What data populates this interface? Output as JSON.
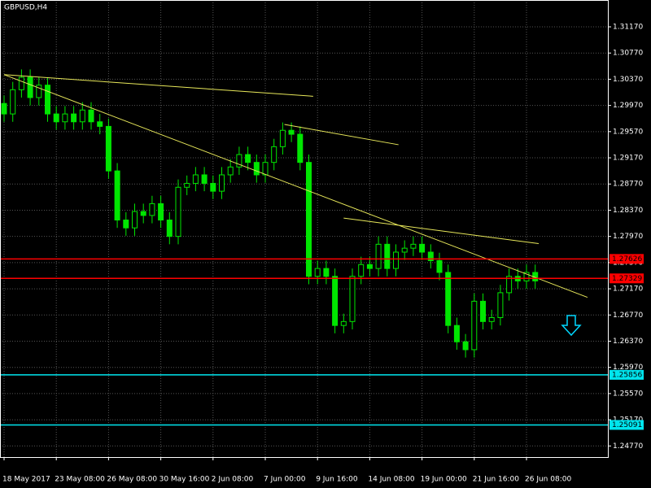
{
  "chart_data": {
    "type": "candlestick",
    "title": "GBPUSD,H4",
    "categories": [
      "18 May 2017",
      null,
      null,
      null,
      null,
      null,
      "23 May 08:00",
      null,
      null,
      null,
      null,
      null,
      "26 May 08:00",
      null,
      null,
      null,
      null,
      null,
      "30 May 16:00",
      null,
      null,
      null,
      null,
      null,
      "2 Jun 08:00",
      null,
      null,
      null,
      null,
      null,
      "7 Jun 00:00",
      null,
      null,
      null,
      null,
      null,
      "9 Jun 16:00",
      null,
      null,
      null,
      null,
      null,
      "14 Jun 08:00",
      null,
      null,
      null,
      null,
      null,
      "19 Jun 00:00",
      null,
      null,
      null,
      null,
      null,
      "21 Jun 16:00",
      null,
      null,
      null,
      null,
      null,
      "26 Jun 08:00",
      null
    ],
    "open": [
      1.3,
      1.2984,
      1.3021,
      1.304,
      1.3009,
      1.3028,
      1.2984,
      1.2972,
      1.2984,
      1.2972,
      1.299,
      1.2972,
      1.2965,
      1.2897,
      1.2822,
      1.281,
      1.2835,
      1.2829,
      1.2847,
      1.2822,
      1.2797,
      1.2872,
      1.2878,
      1.2891,
      1.2878,
      1.2866,
      1.2891,
      1.2903,
      1.2922,
      1.291,
      1.2891,
      1.291,
      1.2934,
      1.2959,
      1.2953,
      1.291,
      1.2736,
      1.2748,
      1.2736,
      1.2661,
      1.2667,
      1.2736,
      1.2754,
      1.2748,
      1.2785,
      1.2748,
      1.2773,
      1.2779,
      1.2785,
      1.2773,
      1.276,
      1.2742,
      1.2661,
      1.2636,
      1.2624,
      1.2698,
      1.2667,
      1.2673,
      1.2711,
      1.2736,
      1.2729,
      1.2742
    ],
    "high": [
      1.3012,
      1.3033,
      1.3052,
      1.3052,
      1.304,
      1.304,
      1.2996,
      1.2996,
      1.2996,
      1.3002,
      1.3002,
      1.2984,
      1.2977,
      1.2909,
      1.2834,
      1.2847,
      1.2847,
      1.2859,
      1.2859,
      1.2834,
      1.2884,
      1.289,
      1.2903,
      1.2903,
      1.289,
      1.2903,
      1.2915,
      1.2934,
      1.2934,
      1.2922,
      1.2922,
      1.2946,
      1.2971,
      1.2971,
      1.2965,
      1.2922,
      1.276,
      1.276,
      1.2748,
      1.2679,
      1.2748,
      1.2766,
      1.2766,
      1.2797,
      1.2797,
      1.2785,
      1.2791,
      1.2797,
      1.2797,
      1.2785,
      1.2772,
      1.2754,
      1.2673,
      1.2648,
      1.271,
      1.271,
      1.2685,
      1.2723,
      1.2748,
      1.2748,
      1.2754,
      1.2754
    ],
    "low": [
      1.2972,
      1.2972,
      1.3009,
      1.2997,
      1.2997,
      1.2972,
      1.296,
      1.296,
      1.296,
      1.296,
      1.296,
      1.2953,
      1.2885,
      1.281,
      1.2798,
      1.2798,
      1.2817,
      1.2817,
      1.281,
      1.2785,
      1.2785,
      1.286,
      1.2866,
      1.2866,
      1.2854,
      1.2854,
      1.2879,
      1.2891,
      1.2898,
      1.2879,
      1.2879,
      1.2898,
      1.2922,
      1.2941,
      1.2898,
      1.2724,
      1.2724,
      1.2724,
      1.2649,
      1.2649,
      1.2655,
      1.2724,
      1.2736,
      1.2736,
      1.2736,
      1.2736,
      1.2761,
      1.2767,
      1.2761,
      1.2748,
      1.273,
      1.2649,
      1.2624,
      1.2612,
      1.2612,
      1.2655,
      1.2655,
      1.2661,
      1.2699,
      1.2717,
      1.2717,
      1.2717
    ],
    "close": [
      1.2984,
      1.3021,
      1.304,
      1.3009,
      1.3028,
      1.2984,
      1.2972,
      1.2984,
      1.2972,
      1.299,
      1.2972,
      1.2965,
      1.2897,
      1.2822,
      1.281,
      1.2835,
      1.2829,
      1.2847,
      1.2822,
      1.2797,
      1.2872,
      1.2878,
      1.2891,
      1.2878,
      1.2866,
      1.2891,
      1.2903,
      1.2922,
      1.291,
      1.2891,
      1.291,
      1.2934,
      1.2959,
      1.2953,
      1.291,
      1.2736,
      1.2748,
      1.2736,
      1.2661,
      1.2667,
      1.2736,
      1.2754,
      1.2748,
      1.2785,
      1.2748,
      1.2773,
      1.2779,
      1.2785,
      1.2773,
      1.276,
      1.2742,
      1.2661,
      1.2636,
      1.2624,
      1.2698,
      1.2667,
      1.2673,
      1.2711,
      1.2736,
      1.2729,
      1.2742,
      1.2729
    ],
    "color": "#00e600",
    "ylim": [
      1.246,
      1.3158
    ],
    "yticks": [
      {
        "value": 1.3117,
        "label": "1.31170"
      },
      {
        "value": 1.3077,
        "label": "1.30770"
      },
      {
        "value": 1.3037,
        "label": "1.30370"
      },
      {
        "value": 1.2997,
        "label": "1.29970"
      },
      {
        "value": 1.2957,
        "label": "1.29570"
      },
      {
        "value": 1.2917,
        "label": "1.29170"
      },
      {
        "value": 1.2877,
        "label": "1.28770"
      },
      {
        "value": 1.2837,
        "label": "1.28370"
      },
      {
        "value": 1.2797,
        "label": "1.27970"
      },
      {
        "value": 1.2757,
        "label": "1.27570"
      },
      {
        "value": 1.2717,
        "label": "1.27170"
      },
      {
        "value": 1.2677,
        "label": "1.26770"
      },
      {
        "value": 1.2637,
        "label": "1.26370"
      },
      {
        "value": 1.2597,
        "label": "1.25970"
      },
      {
        "value": 1.2557,
        "label": "1.25570"
      },
      {
        "value": 1.2517,
        "label": "1.25170"
      },
      {
        "value": 1.2477,
        "label": "1.24770"
      }
    ],
    "grid": true,
    "hlines": [
      {
        "value": 1.27626,
        "color": "#ff0000"
      },
      {
        "value": 1.27329,
        "color": "#ff0000"
      },
      {
        "value": 1.25856,
        "color": "#00e5ee"
      },
      {
        "value": 1.25091,
        "color": "#00e5ee"
      }
    ],
    "trendlines": [
      {
        "x": [
          0,
          35.5
        ],
        "y": [
          1.3044,
          1.3011
        ]
      },
      {
        "x": [
          0,
          67
        ],
        "y": [
          1.3044,
          1.2704
        ]
      },
      {
        "x": [
          32.2,
          45.3
        ],
        "y": [
          1.2968,
          1.2937
        ]
      },
      {
        "x": [
          39,
          61.4
        ],
        "y": [
          1.2825,
          1.2786
        ]
      }
    ],
    "trendline_color": "#e8e85a"
  }
}
